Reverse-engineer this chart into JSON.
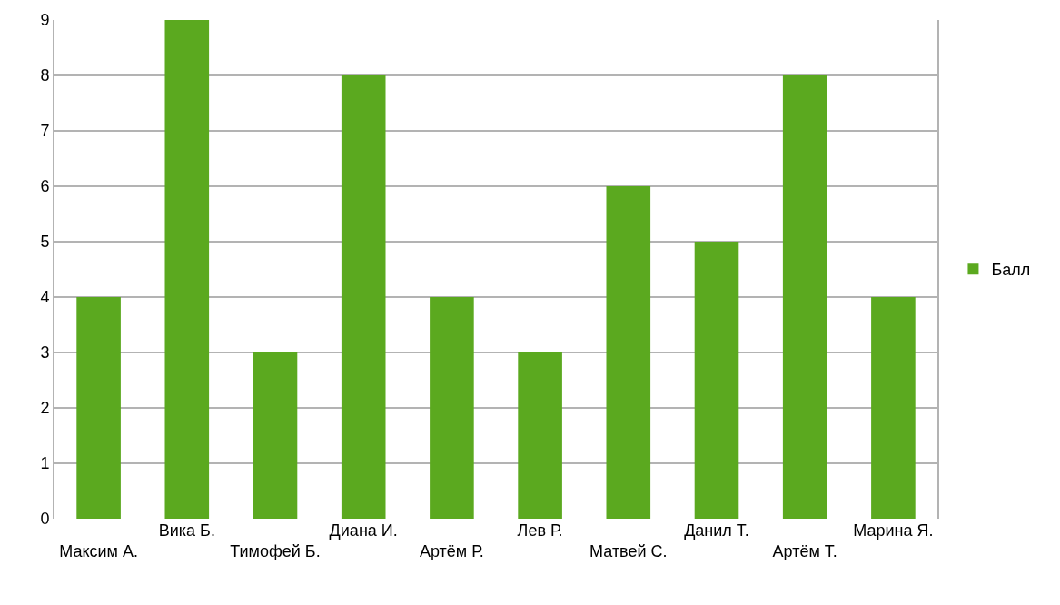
{
  "chart_data": {
    "type": "bar",
    "categories": [
      "Максим А.",
      "Вика Б.",
      "Тимофей Б.",
      "Диана И.",
      "Артём Р.",
      "Лев Р.",
      "Матвей С.",
      "Данил Т.",
      "Артём Т.",
      "Марина Я."
    ],
    "series": [
      {
        "name": "Балл",
        "color": "#5ba91f",
        "values": [
          4,
          9,
          3,
          8,
          4,
          3,
          6,
          5,
          8,
          4
        ]
      }
    ],
    "ylim": [
      0,
      9
    ],
    "yticks": [
      0,
      1,
      2,
      3,
      4,
      5,
      6,
      7,
      8,
      9
    ],
    "grid": "y",
    "legend": "right"
  }
}
